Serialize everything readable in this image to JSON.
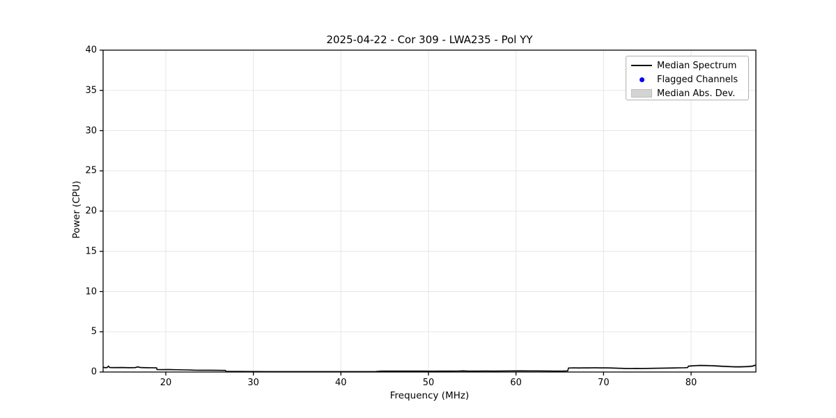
{
  "figure": {
    "title": "2025-04-22 - Cor 309 - LWA235 - Pol YY",
    "xlabel": "Frequency (MHz)",
    "ylabel": "Power (CPU)"
  },
  "legend": {
    "position": "upper right",
    "items": [
      {
        "label": "Median Spectrum",
        "swatch": "black-line",
        "color": "#000000"
      },
      {
        "label": "Flagged Channels",
        "swatch": "blue-dot",
        "color": "#0000ff"
      },
      {
        "label": "Median Abs. Dev.",
        "swatch": "gray-patch",
        "color": "#d3d3d3"
      }
    ]
  },
  "colors": {
    "spectrum_line": "#000000",
    "flagged_marker": "#0000ff",
    "mad_band": "#d3d3d3",
    "grid": "#e5e5e5",
    "spine": "#000000",
    "background": "#ffffff"
  },
  "chart_data": {
    "type": "line",
    "title": "2025-04-22 - Cor 309 - LWA235 - Pol YY",
    "xlabel": "Frequency (MHz)",
    "ylabel": "Power (CPU)",
    "xlim": [
      12.84,
      87.4
    ],
    "ylim": [
      0,
      40
    ],
    "xticks": [
      20,
      30,
      40,
      50,
      60,
      70,
      80
    ],
    "yticks": [
      0,
      5,
      10,
      15,
      20,
      25,
      30,
      35,
      40
    ],
    "grid": true,
    "legend_position": "upper right",
    "series": [
      {
        "name": "Median Spectrum",
        "type": "line",
        "color": "#000000",
        "points": [
          [
            12.85,
            0.6
          ],
          [
            13.0,
            0.55
          ],
          [
            13.3,
            0.55
          ],
          [
            13.45,
            0.73
          ],
          [
            13.6,
            0.56
          ],
          [
            14.2,
            0.55
          ],
          [
            15.0,
            0.56
          ],
          [
            15.8,
            0.54
          ],
          [
            16.5,
            0.55
          ],
          [
            16.8,
            0.64
          ],
          [
            17.1,
            0.56
          ],
          [
            17.8,
            0.54
          ],
          [
            18.4,
            0.53
          ],
          [
            18.95,
            0.52
          ],
          [
            19.0,
            0.31
          ],
          [
            19.6,
            0.3
          ],
          [
            20.3,
            0.31
          ],
          [
            21.0,
            0.29
          ],
          [
            21.8,
            0.27
          ],
          [
            22.5,
            0.26
          ],
          [
            23.2,
            0.23
          ],
          [
            24.0,
            0.22
          ],
          [
            25.0,
            0.22
          ],
          [
            26.0,
            0.21
          ],
          [
            26.8,
            0.2
          ],
          [
            26.9,
            0.08
          ],
          [
            28.0,
            0.07
          ],
          [
            30.0,
            0.06
          ],
          [
            32.0,
            0.05
          ],
          [
            34.0,
            0.05
          ],
          [
            36.0,
            0.05
          ],
          [
            38.0,
            0.05
          ],
          [
            40.0,
            0.05
          ],
          [
            42.0,
            0.05
          ],
          [
            44.0,
            0.06
          ],
          [
            44.6,
            0.12
          ],
          [
            45.5,
            0.12
          ],
          [
            46.5,
            0.11
          ],
          [
            47.5,
            0.12
          ],
          [
            48.5,
            0.12
          ],
          [
            49.5,
            0.11
          ],
          [
            50.5,
            0.1
          ],
          [
            51.5,
            0.11
          ],
          [
            52.5,
            0.12
          ],
          [
            53.5,
            0.13
          ],
          [
            54.0,
            0.15
          ],
          [
            54.5,
            0.12
          ],
          [
            55.5,
            0.12
          ],
          [
            56.5,
            0.13
          ],
          [
            57.5,
            0.12
          ],
          [
            58.5,
            0.13
          ],
          [
            59.5,
            0.14
          ],
          [
            60.5,
            0.15
          ],
          [
            61.5,
            0.14
          ],
          [
            62.5,
            0.14
          ],
          [
            63.5,
            0.13
          ],
          [
            64.5,
            0.12
          ],
          [
            65.3,
            0.12
          ],
          [
            65.9,
            0.14
          ],
          [
            66.0,
            0.5
          ],
          [
            66.6,
            0.52
          ],
          [
            67.2,
            0.5
          ],
          [
            67.8,
            0.52
          ],
          [
            68.4,
            0.51
          ],
          [
            69.0,
            0.53
          ],
          [
            69.6,
            0.51
          ],
          [
            70.2,
            0.52
          ],
          [
            70.8,
            0.5
          ],
          [
            71.4,
            0.48
          ],
          [
            72.0,
            0.46
          ],
          [
            72.6,
            0.44
          ],
          [
            73.2,
            0.44
          ],
          [
            73.8,
            0.45
          ],
          [
            74.4,
            0.44
          ],
          [
            75.0,
            0.45
          ],
          [
            75.6,
            0.46
          ],
          [
            76.2,
            0.47
          ],
          [
            76.8,
            0.48
          ],
          [
            77.4,
            0.49
          ],
          [
            78.0,
            0.5
          ],
          [
            78.6,
            0.52
          ],
          [
            79.2,
            0.53
          ],
          [
            79.6,
            0.55
          ],
          [
            79.7,
            0.73
          ],
          [
            80.1,
            0.76
          ],
          [
            80.6,
            0.8
          ],
          [
            81.1,
            0.82
          ],
          [
            81.6,
            0.81
          ],
          [
            82.1,
            0.79
          ],
          [
            82.6,
            0.77
          ],
          [
            83.1,
            0.74
          ],
          [
            83.6,
            0.71
          ],
          [
            84.1,
            0.69
          ],
          [
            84.6,
            0.66
          ],
          [
            85.1,
            0.64
          ],
          [
            85.6,
            0.64
          ],
          [
            86.1,
            0.66
          ],
          [
            86.6,
            0.69
          ],
          [
            87.0,
            0.73
          ],
          [
            87.35,
            0.85
          ]
        ]
      },
      {
        "name": "Flagged Channels",
        "type": "scatter",
        "color": "#0000ff",
        "points": []
      },
      {
        "name": "Median Abs. Dev.",
        "type": "band",
        "color": "#d3d3d3",
        "halfwidth_points": [
          [
            12.85,
            0.1
          ],
          [
            18.95,
            0.09
          ],
          [
            19.1,
            0.06
          ],
          [
            26.8,
            0.05
          ],
          [
            27.0,
            0.04
          ],
          [
            44.0,
            0.03
          ],
          [
            44.6,
            0.05
          ],
          [
            65.9,
            0.05
          ],
          [
            66.1,
            0.08
          ],
          [
            79.6,
            0.08
          ],
          [
            79.8,
            0.1
          ],
          [
            87.35,
            0.13
          ]
        ]
      }
    ]
  }
}
